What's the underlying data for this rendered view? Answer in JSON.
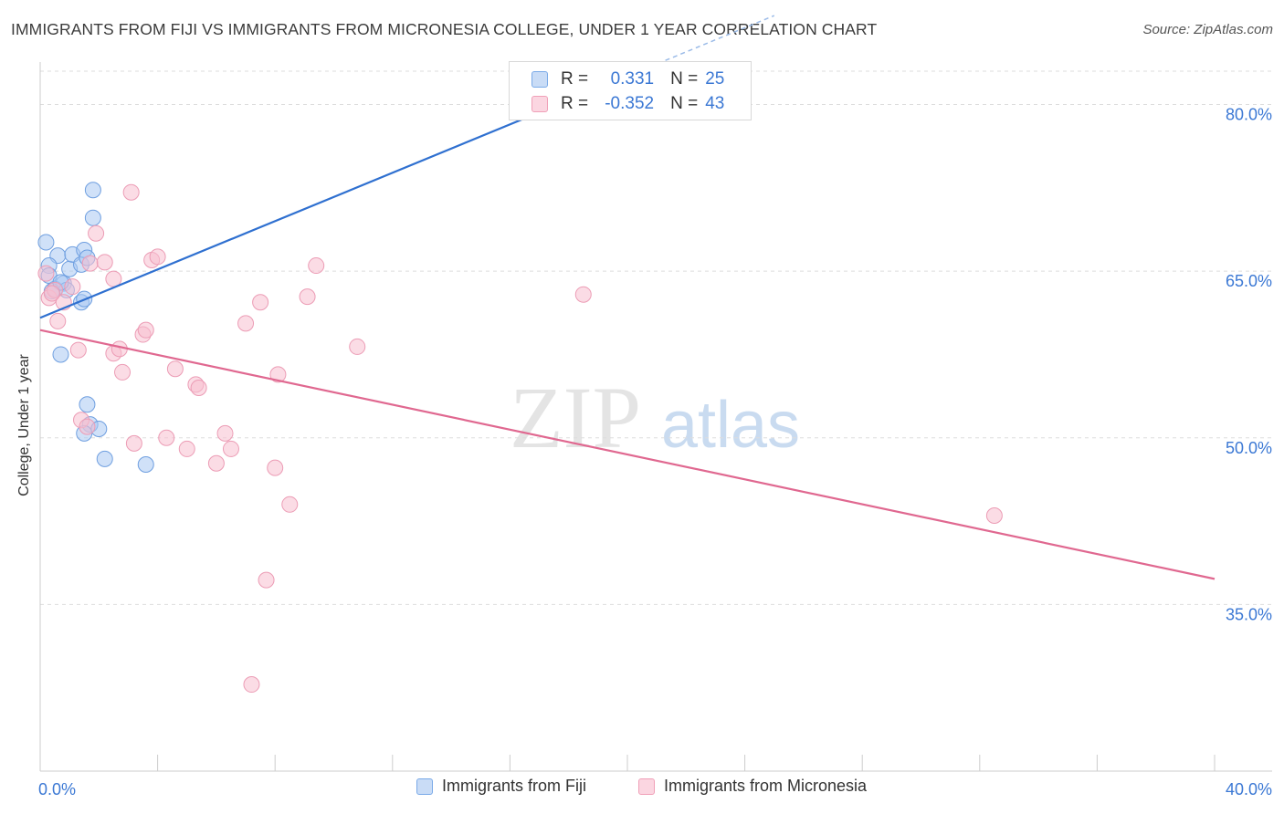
{
  "title": "IMMIGRANTS FROM FIJI VS IMMIGRANTS FROM MICRONESIA COLLEGE, UNDER 1 YEAR CORRELATION CHART",
  "source": "Source: ZipAtlas.com",
  "watermark": {
    "zip": "ZIP",
    "atlas": "atlas"
  },
  "legend_box": {
    "rows": [
      {
        "r_label": "R =",
        "r_value": "0.331",
        "n_label": "N =",
        "n_value": "25",
        "color": "#7aaae8"
      },
      {
        "r_label": "R =",
        "r_value": "-0.352",
        "n_label": "N =",
        "n_value": "43",
        "color": "#f0a0b8"
      }
    ]
  },
  "bottom_legend": {
    "fiji": "Immigrants from Fiji",
    "micronesia": "Immigrants from Micronesia"
  },
  "colors": {
    "fiji_fill": "#a9c8f2",
    "fiji_stroke": "#6f9fe0",
    "fiji_line": "#2f70d0",
    "micronesia_fill": "#f7c0d0",
    "micronesia_stroke": "#ec9cb5",
    "micronesia_line": "#e06890",
    "axis_text": "#3b78d4",
    "grid": "#dddddd"
  },
  "chart_data": {
    "type": "scatter",
    "title": "IMMIGRANTS FROM FIJI VS IMMIGRANTS FROM MICRONESIA COLLEGE, UNDER 1 YEAR CORRELATION CHART",
    "xlabel": "",
    "ylabel": "College, Under 1 year",
    "xlim": [
      0,
      40
    ],
    "ylim": [
      20,
      83
    ],
    "x_tick_labels": [
      "0.0%",
      "40.0%"
    ],
    "y_ticks": [
      35,
      50,
      65,
      80
    ],
    "y_tick_labels": [
      "35.0%",
      "50.0%",
      "65.0%",
      "80.0%"
    ],
    "grid": true,
    "legend_position": "top-center",
    "series": [
      {
        "name": "Immigrants from Fiji",
        "points": [
          [
            0.2,
            67.6
          ],
          [
            0.6,
            66.4
          ],
          [
            0.3,
            65.5
          ],
          [
            1.0,
            65.2
          ],
          [
            1.1,
            66.5
          ],
          [
            1.4,
            65.6
          ],
          [
            1.5,
            66.9
          ],
          [
            0.5,
            63.4
          ],
          [
            0.8,
            63.9
          ],
          [
            0.9,
            63.3
          ],
          [
            1.4,
            62.2
          ],
          [
            1.5,
            62.5
          ],
          [
            1.8,
            72.3
          ],
          [
            1.8,
            69.8
          ],
          [
            0.7,
            57.5
          ],
          [
            1.6,
            53.0
          ],
          [
            1.7,
            51.2
          ],
          [
            1.5,
            50.4
          ],
          [
            2.0,
            50.8
          ],
          [
            2.2,
            48.1
          ],
          [
            3.6,
            47.6
          ],
          [
            0.3,
            64.6
          ],
          [
            0.4,
            63.2
          ],
          [
            1.6,
            66.2
          ],
          [
            0.7,
            64.0
          ]
        ],
        "trend": {
          "x": [
            0,
            25
          ],
          "y": [
            60.8,
            88
          ]
        }
      },
      {
        "name": "Immigrants from Micronesia",
        "points": [
          [
            0.2,
            64.8
          ],
          [
            0.3,
            62.6
          ],
          [
            0.5,
            63.3
          ],
          [
            0.6,
            60.5
          ],
          [
            0.8,
            62.2
          ],
          [
            1.1,
            63.6
          ],
          [
            1.3,
            57.9
          ],
          [
            1.4,
            51.6
          ],
          [
            1.6,
            51.0
          ],
          [
            1.7,
            65.7
          ],
          [
            1.9,
            68.4
          ],
          [
            2.2,
            65.8
          ],
          [
            2.5,
            64.3
          ],
          [
            2.5,
            57.6
          ],
          [
            2.7,
            58.0
          ],
          [
            2.8,
            55.9
          ],
          [
            3.1,
            72.1
          ],
          [
            3.2,
            49.5
          ],
          [
            3.5,
            59.3
          ],
          [
            3.6,
            59.7
          ],
          [
            3.8,
            66.0
          ],
          [
            4.0,
            66.3
          ],
          [
            4.3,
            50.0
          ],
          [
            4.6,
            56.2
          ],
          [
            5.0,
            49.0
          ],
          [
            5.3,
            54.8
          ],
          [
            5.4,
            54.5
          ],
          [
            6.0,
            47.7
          ],
          [
            6.3,
            50.4
          ],
          [
            6.5,
            49.0
          ],
          [
            7.0,
            60.3
          ],
          [
            7.5,
            62.2
          ],
          [
            7.7,
            37.2
          ],
          [
            8.0,
            47.3
          ],
          [
            8.1,
            55.7
          ],
          [
            8.5,
            44.0
          ],
          [
            9.1,
            62.7
          ],
          [
            9.4,
            65.5
          ],
          [
            10.8,
            58.2
          ],
          [
            18.5,
            62.9
          ],
          [
            32.5,
            43.0
          ],
          [
            0.4,
            63.0
          ],
          [
            7.2,
            27.8
          ]
        ],
        "trend": {
          "x": [
            0,
            40
          ],
          "y": [
            59.7,
            37.3
          ]
        }
      }
    ]
  }
}
